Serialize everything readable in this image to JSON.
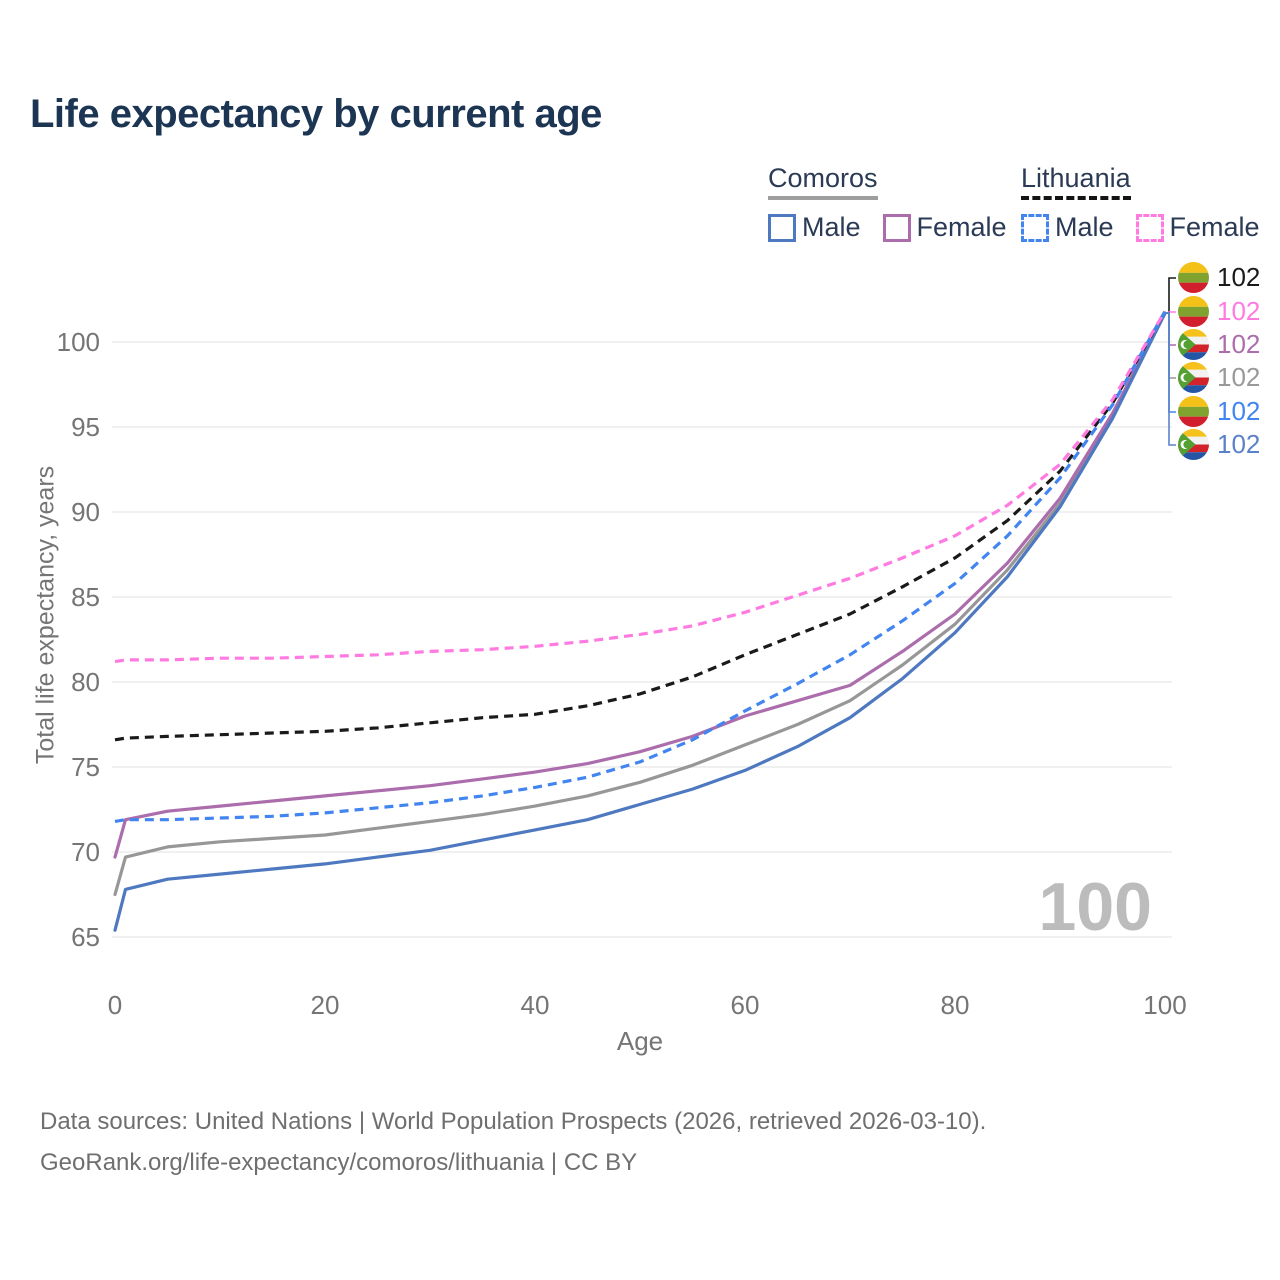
{
  "title": "Life expectancy by current age",
  "legend": {
    "groups": [
      {
        "name": "Comoros",
        "line_style": "solid",
        "underline_color": "#9e9e9e",
        "items": [
          {
            "label": "Male",
            "color": "#4e79c0"
          },
          {
            "label": "Female",
            "color": "#ab6dab"
          }
        ]
      },
      {
        "name": "Lithuania",
        "line_style": "dashed",
        "underline_color": "#141414",
        "items": [
          {
            "label": "Male",
            "color": "#4285f0"
          },
          {
            "label": "Female",
            "color": "#ff7ae1"
          }
        ]
      }
    ]
  },
  "chart_data": {
    "type": "line",
    "title": "Life expectancy by current age",
    "xlabel": "Age",
    "ylabel": "Total life expectancy, years",
    "xlim": [
      0,
      100
    ],
    "ylim": [
      63.5,
      103.5
    ],
    "x_ticks": [
      0,
      20,
      40,
      60,
      80,
      100
    ],
    "y_ticks": [
      65,
      70,
      75,
      80,
      85,
      90,
      95,
      100
    ],
    "grid": true,
    "grid_color": "#e8e8e8",
    "x": [
      0,
      1,
      5,
      10,
      15,
      20,
      25,
      30,
      35,
      40,
      45,
      50,
      55,
      60,
      65,
      70,
      75,
      80,
      85,
      90,
      95,
      100
    ],
    "series": [
      {
        "name": "Comoros Both sexes",
        "country": "Comoros",
        "sex": "both",
        "color": "#979797",
        "dash": false,
        "values": [
          67.5,
          69.7,
          70.3,
          70.6,
          70.8,
          71.0,
          71.4,
          71.8,
          72.2,
          72.7,
          73.3,
          74.1,
          75.1,
          76.3,
          77.5,
          78.9,
          81.0,
          83.4,
          86.6,
          90.5,
          95.6,
          101.7
        ]
      },
      {
        "name": "Comoros Female",
        "country": "Comoros",
        "sex": "female",
        "color": "#ab6dab",
        "dash": false,
        "values": [
          69.7,
          71.9,
          72.4,
          72.7,
          73.0,
          73.3,
          73.6,
          73.9,
          74.3,
          74.7,
          75.2,
          75.9,
          76.8,
          78.0,
          78.9,
          79.8,
          81.8,
          84.0,
          87.0,
          90.8,
          95.8,
          101.7
        ]
      },
      {
        "name": "Comoros Male",
        "country": "Comoros",
        "sex": "male",
        "color": "#4e79c0",
        "dash": false,
        "values": [
          65.4,
          67.8,
          68.4,
          68.7,
          69.0,
          69.3,
          69.7,
          70.1,
          70.7,
          71.3,
          71.9,
          72.8,
          73.7,
          74.8,
          76.2,
          77.9,
          80.2,
          82.9,
          86.2,
          90.3,
          95.5,
          101.7
        ]
      },
      {
        "name": "Lithuania Both sexes",
        "country": "Lithuania",
        "sex": "both",
        "color": "#1a1a1a",
        "dash": true,
        "values": [
          76.6,
          76.7,
          76.8,
          76.9,
          77.0,
          77.1,
          77.3,
          77.6,
          77.9,
          78.1,
          78.6,
          79.3,
          80.3,
          81.6,
          82.8,
          84.0,
          85.6,
          87.3,
          89.5,
          92.4,
          96.4,
          101.8
        ]
      },
      {
        "name": "Lithuania Male",
        "country": "Lithuania",
        "sex": "male",
        "color": "#4285f0",
        "dash": true,
        "values": [
          71.8,
          71.9,
          71.9,
          72.0,
          72.1,
          72.3,
          72.6,
          72.9,
          73.3,
          73.8,
          74.4,
          75.3,
          76.6,
          78.3,
          79.9,
          81.6,
          83.6,
          85.8,
          88.6,
          92.0,
          96.3,
          101.8
        ]
      },
      {
        "name": "Lithuania Female",
        "country": "Lithuania",
        "sex": "female",
        "color": "#ff7ae1",
        "dash": true,
        "values": [
          81.2,
          81.3,
          81.3,
          81.4,
          81.4,
          81.5,
          81.6,
          81.8,
          81.9,
          82.1,
          82.4,
          82.8,
          83.3,
          84.1,
          85.1,
          86.1,
          87.3,
          88.6,
          90.4,
          92.8,
          96.6,
          101.8
        ]
      }
    ],
    "end_labels": [
      {
        "value": "102",
        "flag": "lithuania",
        "color": "#1a1a1a",
        "row_y": 278
      },
      {
        "value": "102",
        "flag": "lithuania",
        "color": "#ff7ae1",
        "row_y": 312
      },
      {
        "value": "102",
        "flag": "comoros",
        "color": "#ab6dab",
        "row_y": 345
      },
      {
        "value": "102",
        "flag": "comoros",
        "color": "#999999",
        "row_y": 378
      },
      {
        "value": "102",
        "flag": "lithuania",
        "color": "#4285f0",
        "row_y": 412
      },
      {
        "value": "102",
        "flag": "comoros",
        "color": "#5b82c8",
        "row_y": 445
      }
    ],
    "legend_position": "top-right"
  },
  "watermark": "100",
  "footer": {
    "line1": "Data sources: United Nations | World Population Prospects (2026, retrieved 2026-03-10).",
    "line2": "GeoRank.org/life-expectancy/comoros/lithuania | CC BY"
  }
}
